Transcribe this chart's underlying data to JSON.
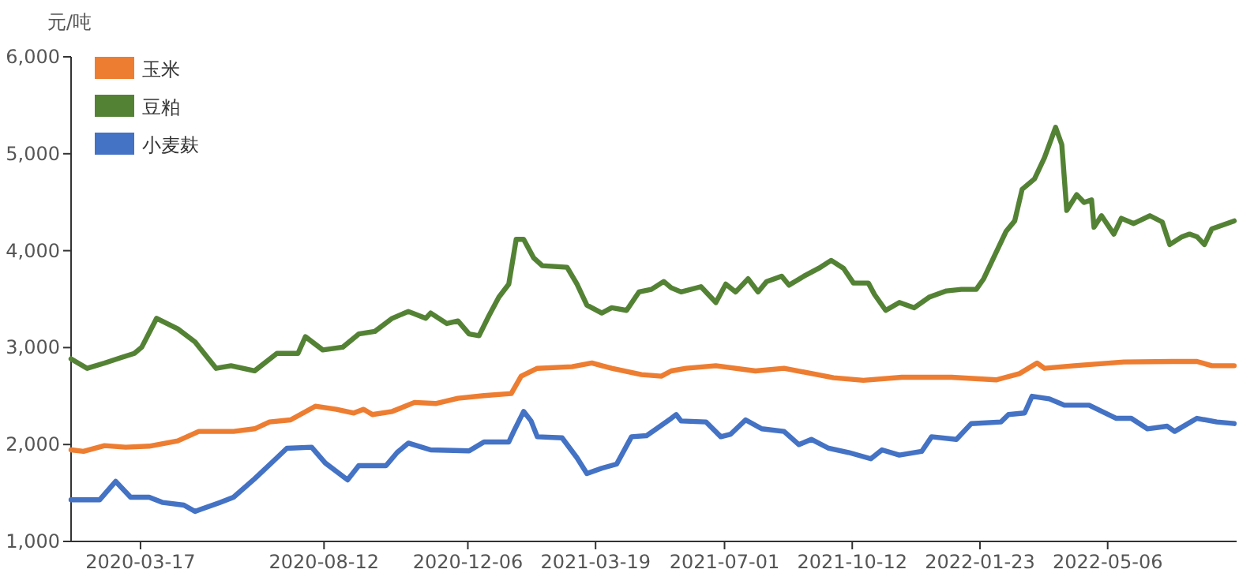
{
  "chart_data": {
    "type": "line",
    "ylabel": "元/吨",
    "legend": "top left",
    "marker": "none",
    "line_style": "solid",
    "grid": false,
    "xlim": [
      "2020-01-21",
      "2022-08-18"
    ],
    "ylim": [
      1000,
      6000
    ],
    "xticks": [
      "2020-03-17",
      "2020-08-12",
      "2020-12-06",
      "2021-03-19",
      "2021-07-01",
      "2021-10-12",
      "2022-01-23",
      "2022-05-06"
    ],
    "yticks": [
      {
        "value": 1000,
        "label": "1,000"
      },
      {
        "value": 2000,
        "label": "2,000"
      },
      {
        "value": 3000,
        "label": "3,000"
      },
      {
        "value": 4000,
        "label": "4,000"
      },
      {
        "value": 5000,
        "label": "5,000"
      },
      {
        "value": 6000,
        "label": "6,000"
      }
    ],
    "series": [
      {
        "name": "玉米",
        "color": "#ed7d31",
        "x": [
          "2020-01-21",
          "2020-01-31",
          "2020-02-17",
          "2020-03-05",
          "2020-03-24",
          "2020-04-16",
          "2020-05-03",
          "2020-05-31",
          "2020-06-17",
          "2020-06-29",
          "2020-07-16",
          "2020-08-05",
          "2020-08-22",
          "2020-09-05",
          "2020-09-13",
          "2020-09-20",
          "2020-10-06",
          "2020-10-24",
          "2020-11-10",
          "2020-11-28",
          "2020-12-19",
          "2021-01-10",
          "2021-01-18",
          "2021-01-31",
          "2021-02-28",
          "2021-03-16",
          "2021-04-01",
          "2021-04-25",
          "2021-05-11",
          "2021-05-19",
          "2021-05-31",
          "2021-06-24",
          "2021-07-26",
          "2021-08-18",
          "2021-09-27",
          "2021-10-21",
          "2021-11-21",
          "2021-12-31",
          "2022-02-05",
          "2022-02-24",
          "2022-03-10",
          "2022-03-16",
          "2022-04-09",
          "2022-05-19",
          "2022-06-27",
          "2022-07-17",
          "2022-07-29",
          "2022-08-16"
        ],
        "values": [
          1945,
          1929,
          1988,
          1972,
          1983,
          2037,
          2135,
          2135,
          2162,
          2233,
          2254,
          2395,
          2363,
          2325,
          2363,
          2309,
          2341,
          2434,
          2423,
          2477,
          2504,
          2526,
          2705,
          2786,
          2803,
          2841,
          2786,
          2721,
          2705,
          2759,
          2786,
          2813,
          2759,
          2786,
          2689,
          2662,
          2694,
          2694,
          2667,
          2732,
          2841,
          2786,
          2813,
          2852,
          2857,
          2857,
          2813,
          2813
        ]
      },
      {
        "name": "豆粕",
        "color": "#548235",
        "x": [
          "2020-01-21",
          "2020-02-03",
          "2020-02-17",
          "2020-03-01",
          "2020-03-12",
          "2020-03-18",
          "2020-03-30",
          "2020-04-16",
          "2020-04-30",
          "2020-05-17",
          "2020-05-29",
          "2020-06-17",
          "2020-07-05",
          "2020-07-22",
          "2020-07-28",
          "2020-08-11",
          "2020-08-27",
          "2020-09-09",
          "2020-09-22",
          "2020-10-06",
          "2020-10-19",
          "2020-11-02",
          "2020-11-06",
          "2020-11-19",
          "2020-11-28",
          "2020-12-07",
          "2020-12-15",
          "2020-12-23",
          "2020-12-31",
          "2021-01-08",
          "2021-01-14",
          "2021-01-20",
          "2021-01-28",
          "2021-02-04",
          "2021-02-24",
          "2021-03-04",
          "2021-03-12",
          "2021-03-24",
          "2021-04-01",
          "2021-04-13",
          "2021-04-23",
          "2021-05-03",
          "2021-05-13",
          "2021-05-19",
          "2021-05-27",
          "2021-06-12",
          "2021-06-24",
          "2021-07-02",
          "2021-07-10",
          "2021-07-20",
          "2021-07-28",
          "2021-08-04",
          "2021-08-16",
          "2021-08-22",
          "2021-09-03",
          "2021-09-15",
          "2021-09-25",
          "2021-10-05",
          "2021-10-13",
          "2021-10-25",
          "2021-10-30",
          "2021-11-08",
          "2021-11-19",
          "2021-12-01",
          "2021-12-13",
          "2021-12-27",
          "2022-01-08",
          "2022-01-20",
          "2022-01-26",
          "2022-02-05",
          "2022-02-13",
          "2022-02-20",
          "2022-02-26",
          "2022-03-08",
          "2022-03-16",
          "2022-03-25",
          "2022-03-30",
          "2022-04-03",
          "2022-04-11",
          "2022-04-17",
          "2022-04-23",
          "2022-04-25",
          "2022-05-01",
          "2022-05-11",
          "2022-05-17",
          "2022-05-27",
          "2022-06-09",
          "2022-06-19",
          "2022-06-25",
          "2022-07-05",
          "2022-07-11",
          "2022-07-17",
          "2022-07-23",
          "2022-07-29",
          "2022-08-16"
        ],
        "values": [
          2884,
          2786,
          2840,
          2895,
          2940,
          3004,
          3302,
          3194,
          3058,
          2786,
          2813,
          2760,
          2940,
          2940,
          3112,
          2976,
          3004,
          3140,
          3167,
          3302,
          3373,
          3302,
          3357,
          3248,
          3275,
          3140,
          3123,
          3329,
          3520,
          3655,
          4117,
          4117,
          3927,
          3845,
          3829,
          3655,
          3438,
          3357,
          3411,
          3384,
          3574,
          3601,
          3682,
          3617,
          3574,
          3628,
          3465,
          3655,
          3574,
          3710,
          3574,
          3682,
          3737,
          3644,
          3737,
          3818,
          3900,
          3818,
          3666,
          3666,
          3547,
          3384,
          3465,
          3411,
          3520,
          3585,
          3601,
          3601,
          3710,
          3981,
          4198,
          4307,
          4633,
          4741,
          4958,
          5273,
          5094,
          4415,
          4578,
          4497,
          4524,
          4242,
          4361,
          4171,
          4334,
          4280,
          4361,
          4296,
          4063,
          4144,
          4171,
          4144,
          4063,
          4225,
          4307
        ]
      },
      {
        "name": "小麦麸",
        "color": "#4472c4",
        "x": [
          "2020-01-21",
          "2020-02-13",
          "2020-02-26",
          "2020-03-09",
          "2020-03-24",
          "2020-04-04",
          "2020-04-21",
          "2020-04-30",
          "2020-05-20",
          "2020-05-31",
          "2020-06-17",
          "2020-07-05",
          "2020-07-13",
          "2020-08-02",
          "2020-08-13",
          "2020-08-31",
          "2020-09-09",
          "2020-10-01",
          "2020-10-10",
          "2020-10-19",
          "2020-11-06",
          "2020-12-07",
          "2020-12-19",
          "2021-01-08",
          "2021-01-12",
          "2021-01-20",
          "2021-01-26",
          "2021-01-31",
          "2021-02-20",
          "2021-03-04",
          "2021-03-12",
          "2021-03-24",
          "2021-04-05",
          "2021-04-17",
          "2021-04-29",
          "2021-05-07",
          "2021-05-19",
          "2021-05-23",
          "2021-05-27",
          "2021-06-16",
          "2021-06-28",
          "2021-07-06",
          "2021-07-18",
          "2021-07-31",
          "2021-08-18",
          "2021-08-30",
          "2021-09-09",
          "2021-09-23",
          "2021-10-09",
          "2021-10-27",
          "2021-11-05",
          "2021-11-19",
          "2021-12-07",
          "2021-12-15",
          "2022-01-04",
          "2022-01-16",
          "2022-02-09",
          "2022-02-15",
          "2022-02-28",
          "2022-03-06",
          "2022-03-20",
          "2022-04-01",
          "2022-04-21",
          "2022-05-13",
          "2022-05-25",
          "2022-06-07",
          "2022-06-23",
          "2022-06-29",
          "2022-07-17",
          "2022-08-02",
          "2022-08-16"
        ],
        "values": [
          1429,
          1429,
          1619,
          1456,
          1456,
          1402,
          1375,
          1310,
          1402,
          1456,
          1646,
          1863,
          1961,
          1972,
          1809,
          1635,
          1782,
          1782,
          1918,
          2015,
          1945,
          1934,
          2026,
          2026,
          2135,
          2341,
          2243,
          2080,
          2069,
          1863,
          1700,
          1755,
          1798,
          2080,
          2091,
          2162,
          2270,
          2309,
          2243,
          2233,
          2080,
          2107,
          2254,
          2162,
          2135,
          1999,
          2053,
          1961,
          1918,
          1853,
          1945,
          1891,
          1929,
          2080,
          2053,
          2216,
          2233,
          2309,
          2325,
          2498,
          2471,
          2406,
          2406,
          2270,
          2270,
          2162,
          2189,
          2135,
          2270,
          2233,
          2216
        ]
      }
    ]
  }
}
